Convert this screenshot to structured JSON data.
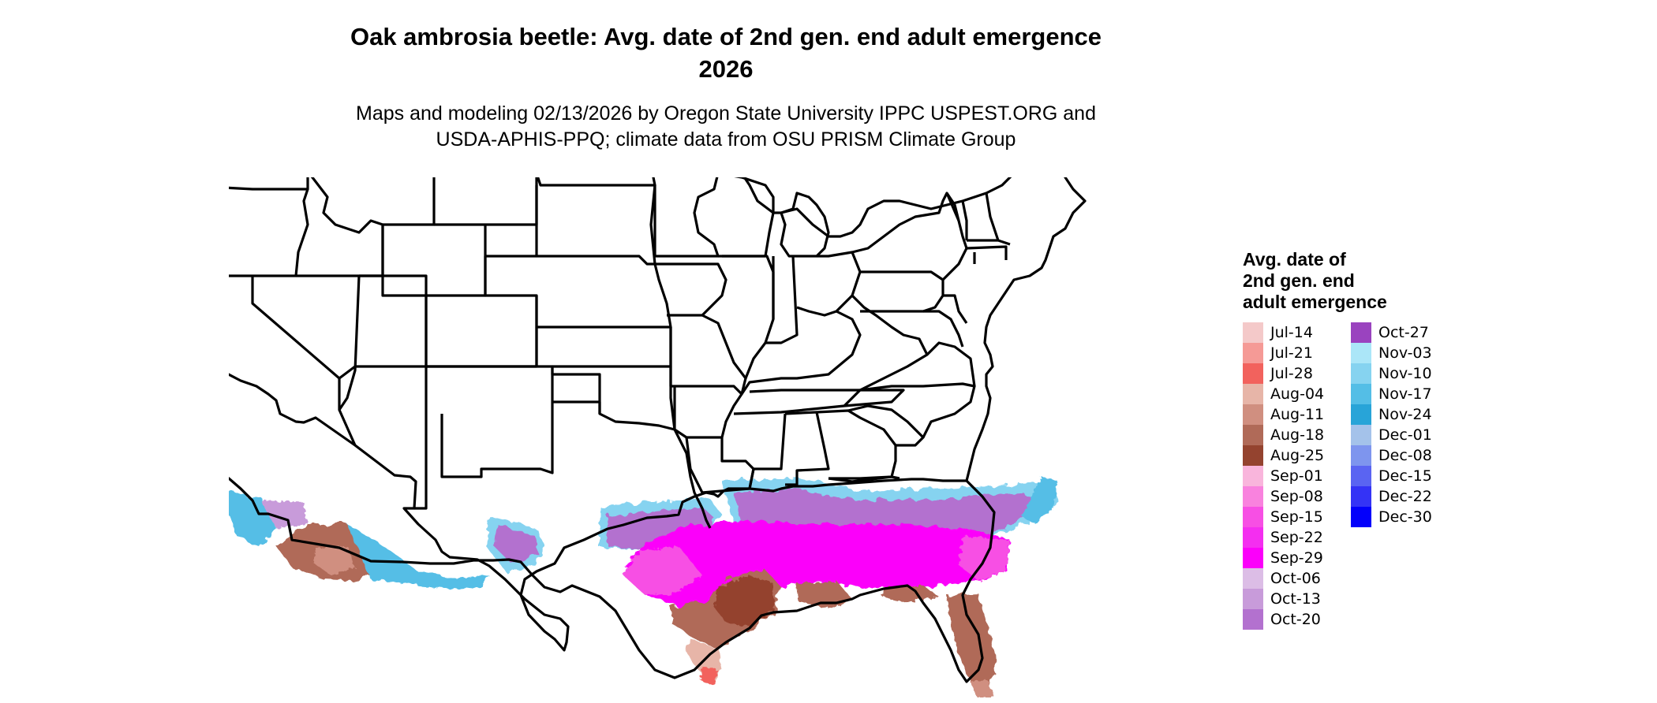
{
  "title": {
    "line1": "Oak ambrosia beetle: Avg. date of 2nd gen. end adult emergence",
    "line2": "2026"
  },
  "subtitle": {
    "line1": "Maps and modeling 02/13/2026 by Oregon State University IPPC USPEST.ORG and",
    "line2": "USDA-APHIS-PPQ; climate data from OSU PRISM Climate Group"
  },
  "legend": {
    "title_line1": "Avg. date of",
    "title_line2": "2nd gen. end",
    "title_line3": "adult emergence",
    "col1": [
      {
        "label": "Jul-14",
        "color": "#f4c9c9"
      },
      {
        "label": "Jul-21",
        "color": "#f59a96"
      },
      {
        "label": "Jul-28",
        "color": "#f2625d"
      },
      {
        "label": "Aug-04",
        "color": "#e7b5a8"
      },
      {
        "label": "Aug-11",
        "color": "#d08f80"
      },
      {
        "label": "Aug-18",
        "color": "#b06a58"
      },
      {
        "label": "Aug-25",
        "color": "#94432f"
      },
      {
        "label": "Sep-01",
        "color": "#f9b5dc"
      },
      {
        "label": "Sep-08",
        "color": "#f982de"
      },
      {
        "label": "Sep-15",
        "color": "#f74fe4"
      },
      {
        "label": "Sep-22",
        "color": "#f42ef0"
      },
      {
        "label": "Sep-29",
        "color": "#fb00fa"
      },
      {
        "label": "Oct-06",
        "color": "#dcbde6"
      },
      {
        "label": "Oct-13",
        "color": "#c89bda"
      },
      {
        "label": "Oct-20",
        "color": "#b371cf"
      }
    ],
    "col2": [
      {
        "label": "Oct-27",
        "color": "#9a43bf"
      },
      {
        "label": "Nov-03",
        "color": "#abe6f8"
      },
      {
        "label": "Nov-10",
        "color": "#86d3f0"
      },
      {
        "label": "Nov-17",
        "color": "#54bee6"
      },
      {
        "label": "Nov-24",
        "color": "#28a4d8"
      },
      {
        "label": "Dec-01",
        "color": "#a4c2ea"
      },
      {
        "label": "Dec-08",
        "color": "#7e95ee"
      },
      {
        "label": "Dec-15",
        "color": "#5a64f2"
      },
      {
        "label": "Dec-22",
        "color": "#3433f6"
      },
      {
        "label": "Dec-30",
        "color": "#0300fb"
      }
    ]
  }
}
